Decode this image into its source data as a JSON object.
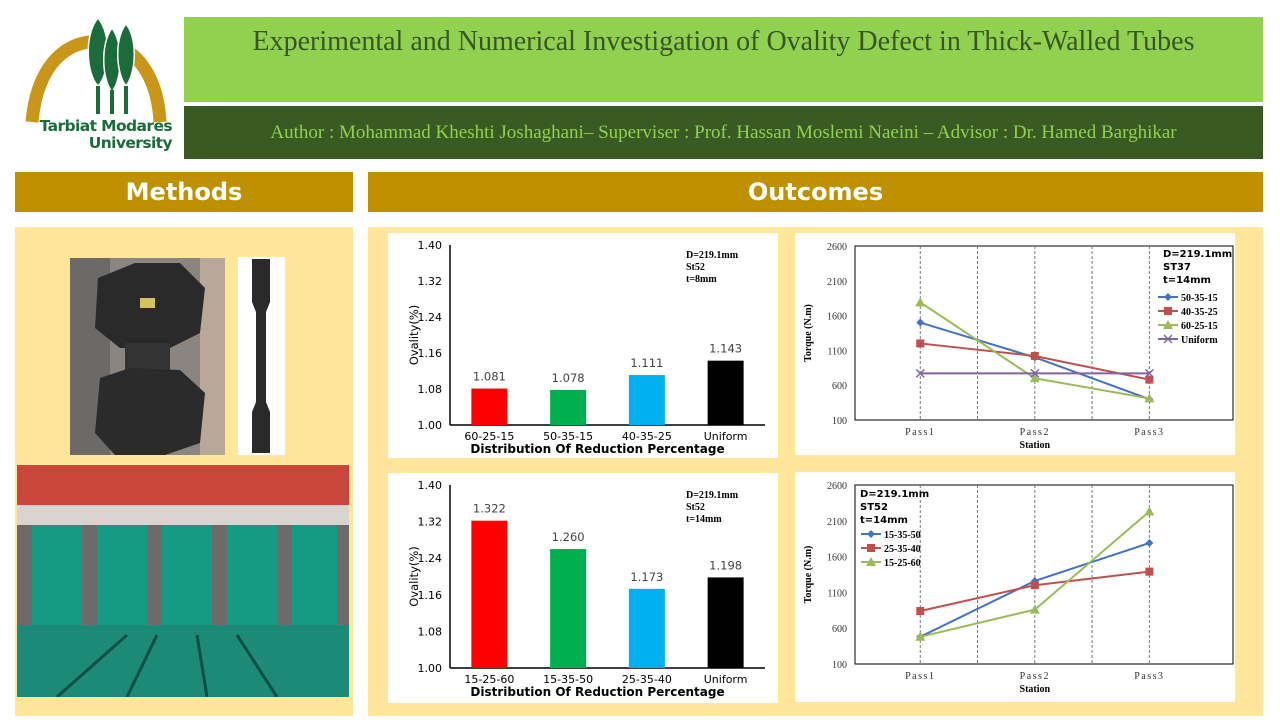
{
  "logo": {
    "text_line1": "Tarbiat Modares",
    "text_line2": "University"
  },
  "header": {
    "title": "Experimental and Numerical Investigation of Ovality Defect in Thick-Walled Tubes",
    "authors": "Author : Mohammad  Kheshti  Joshaghani–  Superviser : Prof. Hassan  Moslemi  Naeini  – Advisor : Dr. Hamed  Barghikar"
  },
  "sections": {
    "methods": "Methods",
    "outcomes": "Outcomes"
  },
  "colors": {
    "title_bg": "#92d050",
    "author_bg": "#3a5a23",
    "section_bg": "#bf9000",
    "panel_bg": "#ffe699"
  },
  "chart_data": [
    {
      "type": "bar",
      "categories": [
        "60-25-15",
        "50-35-15",
        "40-35-25",
        "Uniform"
      ],
      "values": [
        1.081,
        1.078,
        1.111,
        1.143
      ],
      "data_labels": [
        "1.081",
        "1.078",
        "1.111",
        "1.143"
      ],
      "colors": [
        "#ff0000",
        "#00b050",
        "#00b0f0",
        "#000000"
      ],
      "xlabel": "Distribution  Of Reduction Percentage",
      "ylabel": "Ovality(%)",
      "ylim": [
        1.0,
        1.4
      ],
      "yticks": [
        "1.00",
        "1.08",
        "1.16",
        "1.24",
        "1.32",
        "1.40"
      ],
      "annotation": [
        "D=219.1mm",
        "St52",
        "t=8mm"
      ]
    },
    {
      "type": "bar",
      "categories": [
        "15-25-60",
        "15-35-50",
        "25-35-40",
        "Uniform"
      ],
      "values": [
        1.322,
        1.26,
        1.173,
        1.198
      ],
      "data_labels": [
        "1.322",
        "1.260",
        "1.173",
        "1.198"
      ],
      "colors": [
        "#ff0000",
        "#00b050",
        "#00b0f0",
        "#000000"
      ],
      "xlabel": "Distribution  Of Reduction Percentage",
      "ylabel": "Ovality(%)",
      "ylim": [
        1.0,
        1.4
      ],
      "yticks": [
        "1.00",
        "1.08",
        "1.16",
        "1.24",
        "1.32",
        "1.40"
      ],
      "annotation": [
        "D=219.1mm",
        "St52",
        "t=14mm"
      ]
    },
    {
      "type": "line",
      "categories": [
        "Pass1",
        "Pass2",
        "Pass3"
      ],
      "xlabel": "Station",
      "ylabel": "Torque (N.m)",
      "ylim": [
        100,
        2600
      ],
      "yticks": [
        "100",
        "600",
        "1100",
        "1600",
        "2100",
        "2600"
      ],
      "legend": "right",
      "annotation": [
        "D=219.1mm",
        "ST37",
        "t=14mm"
      ],
      "series": [
        {
          "name": "50-35-15",
          "values": [
            1500,
            1000,
            400
          ],
          "color": "#4472c4",
          "marker": "diamond"
        },
        {
          "name": "40-35-25",
          "values": [
            1200,
            1020,
            680
          ],
          "color": "#c0504d",
          "marker": "square"
        },
        {
          "name": "60-25-15",
          "values": [
            1790,
            700,
            410
          ],
          "color": "#9bbb59",
          "marker": "triangle"
        },
        {
          "name": "Uniform",
          "values": [
            770,
            770,
            770
          ],
          "color": "#8064a2",
          "marker": "x"
        }
      ]
    },
    {
      "type": "line",
      "categories": [
        "Pass1",
        "Pass2",
        "Pass3"
      ],
      "xlabel": "Station",
      "ylabel": "Torque (N.m)",
      "ylim": [
        100,
        2600
      ],
      "yticks": [
        "100",
        "600",
        "1100",
        "1600",
        "2100",
        "2600"
      ],
      "legend": "left",
      "annotation": [
        "D=219.1mm",
        "ST52",
        "t=14mm"
      ],
      "series": [
        {
          "name": "15-35-50",
          "values": [
            480,
            1260,
            1790
          ],
          "color": "#4472c4",
          "marker": "diamond"
        },
        {
          "name": "25-35-40",
          "values": [
            840,
            1200,
            1390
          ],
          "color": "#c0504d",
          "marker": "square"
        },
        {
          "name": "15-25-60",
          "values": [
            480,
            860,
            2230
          ],
          "color": "#9bbb59",
          "marker": "triangle"
        }
      ]
    }
  ]
}
